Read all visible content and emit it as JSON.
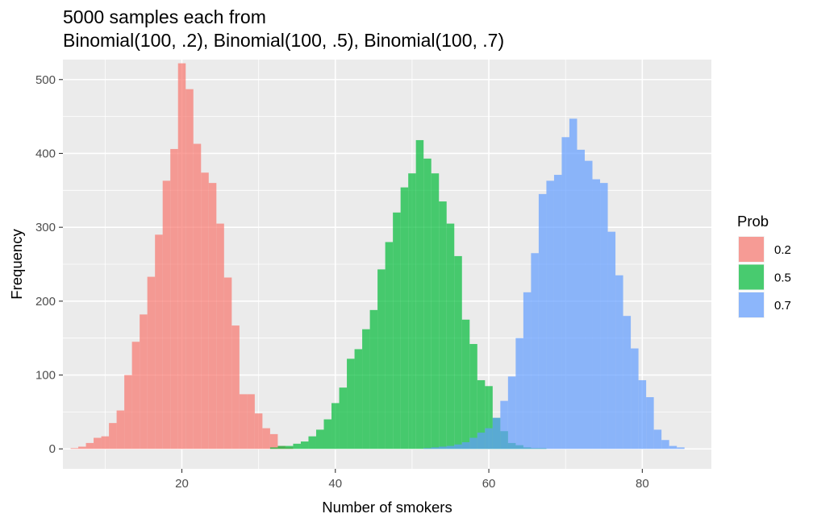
{
  "chart_data": {
    "type": "histogram",
    "title_lines": [
      "5000 samples each from",
      "Binomial(100, .2), Binomial(100, .5), Binomial(100, .7)"
    ],
    "xlabel": "Number of smokers",
    "ylabel": "Frequency",
    "xlim": [
      4.5,
      89
    ],
    "ylim": [
      -27,
      527
    ],
    "x_ticks": [
      20,
      40,
      60,
      80
    ],
    "y_ticks": [
      0,
      100,
      200,
      300,
      400,
      500
    ],
    "background": "#ebebeb",
    "grid": true,
    "bar_opacity": 0.7,
    "bin_width": 1,
    "legend": {
      "title": "Prob",
      "position": "right",
      "entries": [
        {
          "label": "0.2",
          "color": "#F8766D"
        },
        {
          "label": "0.5",
          "color": "#00BA38"
        },
        {
          "label": "0.7",
          "color": "#619CFF"
        }
      ]
    },
    "series": [
      {
        "name": "0.2",
        "color": "#F8766D",
        "x": [
          6,
          7,
          8,
          9,
          10,
          11,
          12,
          13,
          14,
          15,
          16,
          17,
          18,
          19,
          20,
          21,
          22,
          23,
          24,
          25,
          26,
          27,
          28,
          29,
          30,
          31,
          32,
          33,
          34
        ],
        "values": [
          1,
          3,
          8,
          15,
          17,
          35,
          52,
          100,
          145,
          182,
          233,
          290,
          363,
          406,
          522,
          487,
          413,
          374,
          360,
          305,
          232,
          167,
          74,
          74,
          48,
          28,
          20,
          4,
          2
        ]
      },
      {
        "name": "0.5",
        "color": "#00BA38",
        "x": [
          32,
          33,
          34,
          35,
          36,
          37,
          38,
          39,
          40,
          41,
          42,
          43,
          44,
          45,
          46,
          47,
          48,
          49,
          50,
          51,
          52,
          53,
          54,
          55,
          56,
          57,
          58,
          59,
          60,
          61,
          62,
          63,
          64,
          65,
          66,
          67
        ],
        "values": [
          2,
          4,
          4,
          7,
          10,
          17,
          26,
          40,
          62,
          83,
          122,
          135,
          162,
          188,
          243,
          280,
          320,
          354,
          373,
          418,
          393,
          373,
          335,
          305,
          261,
          175,
          142,
          93,
          85,
          42,
          24,
          8,
          5,
          2,
          1,
          1
        ]
      },
      {
        "name": "0.7",
        "color": "#619CFF",
        "x": [
          52,
          53,
          54,
          55,
          56,
          57,
          58,
          59,
          60,
          61,
          62,
          63,
          64,
          65,
          66,
          67,
          68,
          69,
          70,
          71,
          72,
          73,
          74,
          75,
          76,
          77,
          78,
          79,
          80,
          81,
          82,
          83,
          84,
          85
        ],
        "values": [
          1,
          2,
          3,
          4,
          6,
          9,
          15,
          22,
          28,
          42,
          65,
          98,
          150,
          212,
          265,
          345,
          363,
          371,
          422,
          447,
          405,
          390,
          365,
          360,
          294,
          235,
          180,
          136,
          93,
          70,
          26,
          12,
          4,
          2
        ]
      }
    ]
  }
}
